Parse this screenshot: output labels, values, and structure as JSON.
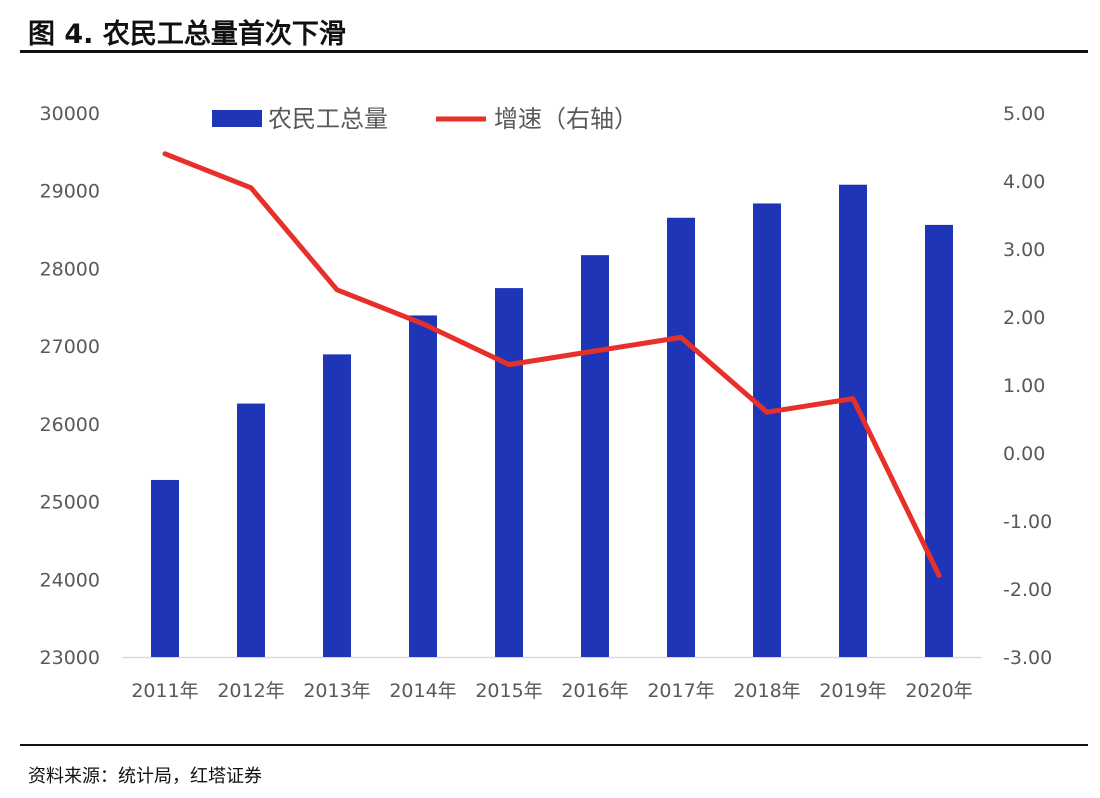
{
  "title": "图 4. 农民工总量首次下滑",
  "source": "资料来源：统计局，红塔证券",
  "chart_data": {
    "type": "bar+line",
    "categories": [
      "2011年",
      "2012年",
      "2013年",
      "2014年",
      "2015年",
      "2016年",
      "2017年",
      "2018年",
      "2019年",
      "2020年"
    ],
    "series": [
      {
        "name": "农民工总量",
        "type": "bar",
        "axis": "left",
        "color": "#1f35b8",
        "values": [
          25278,
          26261,
          26894,
          27395,
          27747,
          28171,
          28652,
          28836,
          29077,
          28560
        ]
      },
      {
        "name": "增速（右轴）",
        "type": "line",
        "axis": "right",
        "color": "#e8302a",
        "values": [
          4.4,
          3.9,
          2.4,
          1.9,
          1.3,
          1.5,
          1.7,
          0.6,
          0.8,
          -1.8
        ]
      }
    ],
    "y_left": {
      "range": [
        23000,
        30000
      ],
      "ticks": [
        "30000",
        "29000",
        "28000",
        "27000",
        "26000",
        "25000",
        "24000",
        "23000"
      ]
    },
    "y_right": {
      "range": [
        -3,
        5
      ],
      "ticks": [
        "5.00",
        "4.00",
        "3.00",
        "2.00",
        "1.00",
        "0.00",
        "-1.00",
        "-2.00",
        "-3.00"
      ]
    },
    "grid": false,
    "legend_placement": "top"
  }
}
